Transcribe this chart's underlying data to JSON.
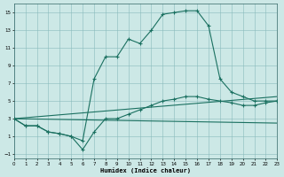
{
  "xlabel": "Humidex (Indice chaleur)",
  "background_color": "#cce8e6",
  "grid_color": "#88bbbb",
  "line_color": "#1a7060",
  "xlim": [
    0,
    23
  ],
  "ylim": [
    -1.5,
    16
  ],
  "xticks": [
    0,
    1,
    2,
    3,
    4,
    5,
    6,
    7,
    8,
    9,
    10,
    11,
    12,
    13,
    14,
    15,
    16,
    17,
    18,
    19,
    20,
    21,
    22,
    23
  ],
  "yticks": [
    -1,
    1,
    3,
    5,
    7,
    9,
    11,
    13,
    15
  ],
  "curve1_x": [
    0,
    1,
    2,
    3,
    4,
    5,
    6,
    7,
    8,
    9,
    10,
    11,
    12,
    13,
    14,
    15,
    16,
    17,
    18,
    19,
    20,
    21,
    22,
    23
  ],
  "curve1_y": [
    3.0,
    2.2,
    2.2,
    1.5,
    1.3,
    1.0,
    0.5,
    7.5,
    10.0,
    10.0,
    12.0,
    11.5,
    13.0,
    14.8,
    15.0,
    15.2,
    15.2,
    13.5,
    7.5,
    6.0,
    5.5,
    5.0,
    5.0,
    5.0
  ],
  "curve2_x": [
    0,
    1,
    2,
    3,
    4,
    5,
    6,
    7,
    8,
    9,
    10,
    11,
    12,
    13,
    14,
    15,
    16,
    17,
    18,
    19,
    20,
    21,
    22,
    23
  ],
  "curve2_y": [
    3.0,
    2.2,
    2.2,
    1.5,
    1.3,
    1.0,
    -0.5,
    1.5,
    3.0,
    3.0,
    3.5,
    4.0,
    4.5,
    5.0,
    5.2,
    5.5,
    5.5,
    5.2,
    5.0,
    4.8,
    4.5,
    4.5,
    4.8,
    5.0
  ],
  "line1_x": [
    0,
    23
  ],
  "line1_y": [
    3.0,
    2.5
  ],
  "line2_x": [
    0,
    23
  ],
  "line2_y": [
    3.0,
    5.5
  ]
}
